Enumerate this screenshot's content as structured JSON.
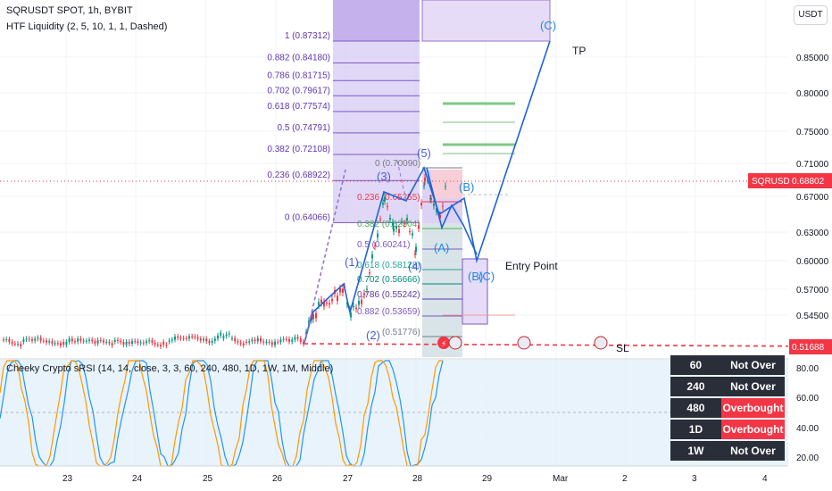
{
  "header": {
    "title": "SQRUSDT SPOT, 1h, BYBIT",
    "indicator": "HTF Liquidity (2, 5, 10, 1, 1, Dashed)",
    "currency": "USDT"
  },
  "rsi_panel": {
    "label": "Cheeky Crypto sRSI (14, 14, close, 3, 3, 60, 240, 480, 1D, 1W, 1M, Middle)",
    "table": [
      {
        "tf": "60",
        "status": "Not Over"
      },
      {
        "tf": "240",
        "status": "Not Over"
      },
      {
        "tf": "480",
        "status": "Overbought"
      },
      {
        "tf": "1D",
        "status": "Overbought"
      },
      {
        "tf": "1W",
        "status": "Not Over"
      }
    ]
  },
  "chart_data": {
    "type": "candlestick",
    "symbol": "SQRUSDT",
    "current_price": "0.68802",
    "sl_price": "0.51688",
    "price_ticks": [
      "0.85000",
      "0.80000",
      "0.75000",
      "0.71000",
      "0.67000",
      "0.63000",
      "0.60000",
      "0.57000",
      "0.54500"
    ],
    "rsi_ticks": [
      "80.00",
      "60.00",
      "40.00",
      "20.00"
    ],
    "x_ticks": [
      "23",
      "24",
      "25",
      "26",
      "27",
      "28",
      "29",
      "Mar",
      "2",
      "3",
      "4"
    ],
    "fib_upper": [
      {
        "level": "1 (0.87312)",
        "price": 0.87312
      },
      {
        "level": "0.882 (0.84180)",
        "price": 0.8418
      },
      {
        "level": "0.786 (0.81715)",
        "price": 0.81715
      },
      {
        "level": "0.702 (0.79617)",
        "price": 0.79617
      },
      {
        "level": "0.618 (0.77574)",
        "price": 0.77574
      },
      {
        "level": "0.5 (0.74791)",
        "price": 0.74791
      },
      {
        "level": "0.382 (0.72108)",
        "price": 0.72108
      },
      {
        "level": "0.236 (0.68922)",
        "price": 0.68922
      },
      {
        "level": "0 (0.64066)",
        "price": 0.64066
      }
    ],
    "fib_lower": [
      {
        "level": "0 (0.70090)",
        "price": 0.7009
      },
      {
        "level": "0.236 (0.65255)",
        "price": 0.65255
      },
      {
        "level": "0.382 (0.62304)",
        "price": 0.62304
      },
      {
        "level": "0.5 (0.60241)",
        "price": 0.60241
      },
      {
        "level": "0.618 (0.58128)",
        "price": 0.58128
      },
      {
        "level": "0.702 (0.56666)",
        "price": 0.56666
      },
      {
        "level": "0.786 (0.55242)",
        "price": 0.55242
      },
      {
        "level": "0.882 (0.53659)",
        "price": 0.53659
      },
      {
        "level": "(0.51776)",
        "price": 0.51776
      }
    ],
    "wave_labels": [
      "(1)",
      "(2)",
      "(3)",
      "(4)",
      "(5)",
      "(A)",
      "(B)",
      "(C)",
      "(B)",
      "(C)"
    ],
    "annotations": {
      "tp": "TP",
      "entry": "Entry Point",
      "sl": "SL"
    }
  }
}
